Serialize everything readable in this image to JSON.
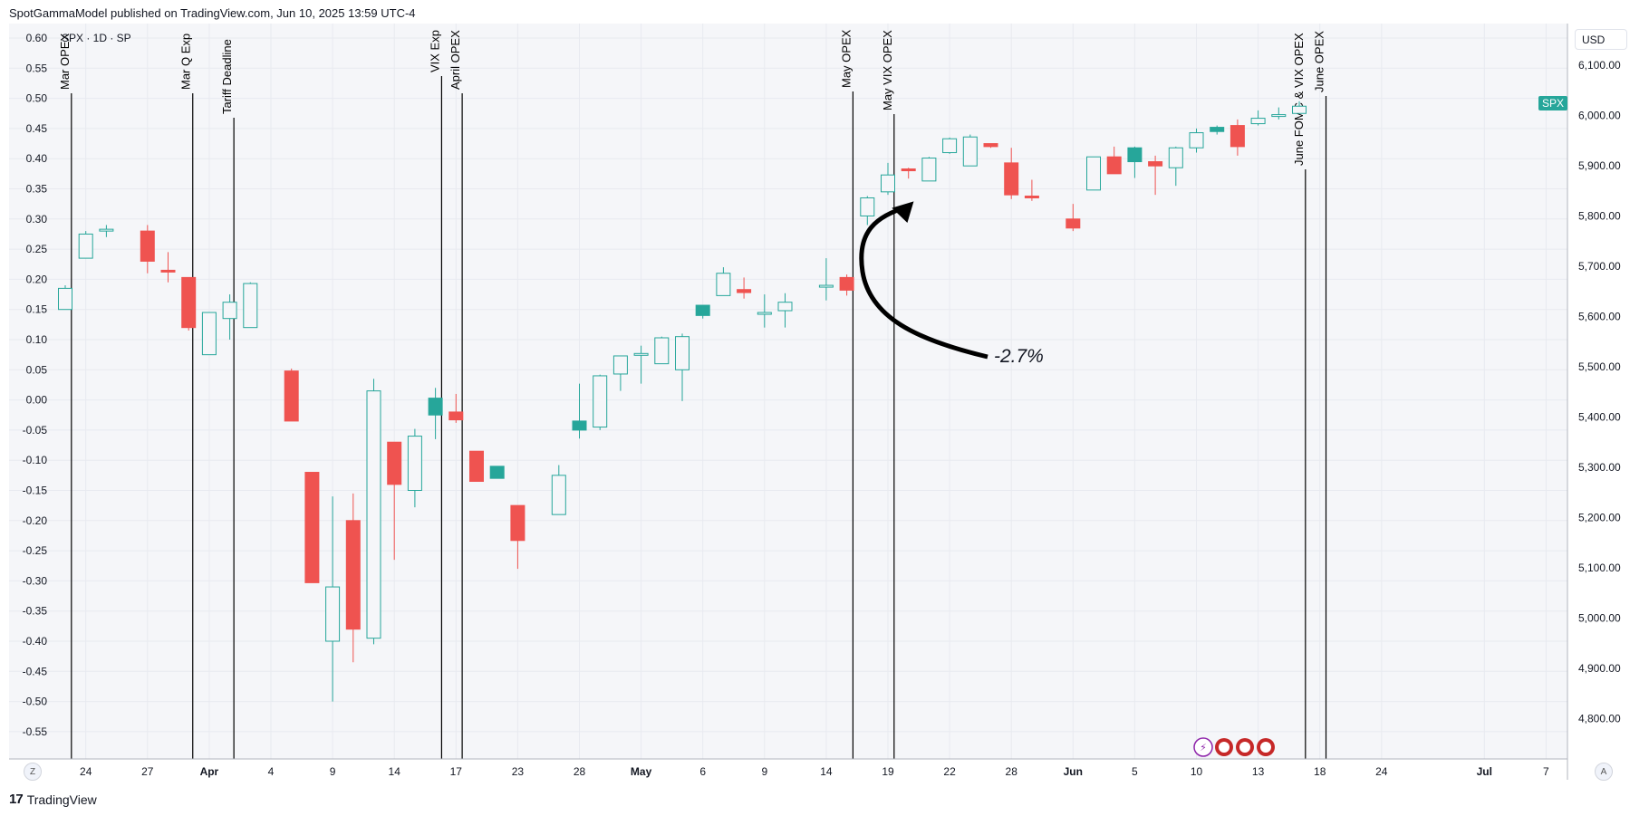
{
  "header": "SpotGammaModel published on TradingView.com, Jun 10, 2025 13:59 UTC-4",
  "symbol_info": "SPX · 1D · SP",
  "currency": "USD",
  "price_badge": "SPX",
  "annotation": "-2.7%",
  "footer": "TradingView",
  "buttons": {
    "left": "Z",
    "right": "A"
  },
  "colors": {
    "up": "#26a69a",
    "down": "#ef5350",
    "grid": "#e8eaf0",
    "text": "#131722"
  },
  "chart_data": {
    "type": "candlestick",
    "title": "",
    "left_axis": {
      "ticks": [
        "0.60",
        "0.55",
        "0.50",
        "0.45",
        "0.40",
        "0.35",
        "0.30",
        "0.25",
        "0.20",
        "0.15",
        "0.10",
        "0.05",
        "0.00",
        "-0.05",
        "-0.10",
        "-0.15",
        "-0.20",
        "-0.25",
        "-0.30",
        "-0.35",
        "-0.40",
        "-0.45",
        "-0.50",
        "-0.55"
      ],
      "range": [
        -0.59,
        0.63
      ]
    },
    "right_axis": {
      "ticks": [
        "6,100.00",
        "6,000.00",
        "5,900.00",
        "5,800.00",
        "5,700.00",
        "5,600.00",
        "5,500.00",
        "5,400.00",
        "5,300.00",
        "5,200.00",
        "5,100.00",
        "5,000.00",
        "4,900.00",
        "4,800.00"
      ],
      "range": [
        4713,
        6180
      ]
    },
    "x_axis_labels": [
      {
        "label": "24",
        "bold": false
      },
      {
        "label": "27",
        "bold": false
      },
      {
        "label": "Apr",
        "bold": true
      },
      {
        "label": "4",
        "bold": false
      },
      {
        "label": "9",
        "bold": false
      },
      {
        "label": "14",
        "bold": false
      },
      {
        "label": "17",
        "bold": false
      },
      {
        "label": "23",
        "bold": false
      },
      {
        "label": "28",
        "bold": false
      },
      {
        "label": "May",
        "bold": true
      },
      {
        "label": "6",
        "bold": false
      },
      {
        "label": "9",
        "bold": false
      },
      {
        "label": "14",
        "bold": false
      },
      {
        "label": "19",
        "bold": false
      },
      {
        "label": "22",
        "bold": false
      },
      {
        "label": "28",
        "bold": false
      },
      {
        "label": "Jun",
        "bold": true
      },
      {
        "label": "5",
        "bold": false
      },
      {
        "label": "10",
        "bold": false
      },
      {
        "label": "13",
        "bold": false
      },
      {
        "label": "18",
        "bold": false
      },
      {
        "label": "24",
        "bold": false
      },
      {
        "label": "Jul",
        "bold": true
      },
      {
        "label": "7",
        "bold": false
      }
    ],
    "events": [
      "Mar OPEX",
      "Mar Q Exp",
      "Tariff Deadline",
      "VIX Exp",
      "April OPEX",
      "May OPEX",
      "May VIX OPEX",
      "June FOMC & VIX OPEX",
      "June OPEX"
    ],
    "candles": [
      {
        "o": 0.15,
        "h": 0.19,
        "l": 0.15,
        "c": 0.185
      },
      {
        "o": 0.235,
        "h": 0.28,
        "l": 0.235,
        "c": 0.275
      },
      {
        "o": 0.28,
        "h": 0.29,
        "l": 0.27,
        "c": 0.283
      },
      {
        "o": 0.28,
        "h": 0.29,
        "l": 0.21,
        "c": 0.23
      },
      {
        "o": 0.215,
        "h": 0.245,
        "l": 0.195,
        "c": 0.213
      },
      {
        "o": 0.203,
        "h": 0.203,
        "l": 0.115,
        "c": 0.12
      },
      {
        "o": 0.075,
        "h": 0.145,
        "l": 0.075,
        "c": 0.145
      },
      {
        "o": 0.135,
        "h": 0.175,
        "l": 0.1,
        "c": 0.162
      },
      {
        "o": 0.12,
        "h": 0.195,
        "l": 0.12,
        "c": 0.193
      },
      {
        "o": 0.048,
        "h": 0.052,
        "l": -0.035,
        "c": -0.035
      },
      {
        "o": -0.12,
        "h": -0.12,
        "l": -0.303,
        "c": -0.303
      },
      {
        "o": -0.4,
        "h": -0.16,
        "l": -0.5,
        "c": -0.31
      },
      {
        "o": -0.2,
        "h": -0.155,
        "l": -0.435,
        "c": -0.38
      },
      {
        "o": -0.395,
        "h": 0.035,
        "l": -0.405,
        "c": 0.015
      },
      {
        "o": -0.07,
        "h": -0.07,
        "l": -0.265,
        "c": -0.14
      },
      {
        "o": -0.15,
        "h": -0.048,
        "l": -0.178,
        "c": -0.06
      },
      {
        "o": -0.025,
        "h": 0.02,
        "l": -0.065,
        "c": 0.003
      },
      {
        "o": -0.02,
        "h": 0.01,
        "l": -0.038,
        "c": -0.033
      },
      {
        "o": -0.085,
        "h": -0.085,
        "l": -0.135,
        "c": -0.135
      },
      {
        "o": -0.13,
        "h": -0.11,
        "l": -0.13,
        "c": -0.11
      },
      {
        "o": -0.175,
        "h": -0.175,
        "l": -0.28,
        "c": -0.233
      },
      {
        "o": -0.19,
        "h": -0.108,
        "l": -0.19,
        "c": -0.125
      },
      {
        "o": -0.05,
        "h": 0.027,
        "l": -0.064,
        "c": -0.035
      },
      {
        "o": -0.045,
        "h": 0.042,
        "l": -0.05,
        "c": 0.04
      },
      {
        "o": 0.043,
        "h": 0.072,
        "l": 0.015,
        "c": 0.073
      },
      {
        "o": 0.075,
        "h": 0.09,
        "l": 0.027,
        "c": 0.077
      },
      {
        "o": 0.06,
        "h": 0.105,
        "l": 0.06,
        "c": 0.103
      },
      {
        "o": 0.05,
        "h": 0.11,
        "l": -0.002,
        "c": 0.105
      },
      {
        "o": 0.14,
        "h": 0.155,
        "l": 0.135,
        "c": 0.157
      },
      {
        "o": 0.173,
        "h": 0.22,
        "l": 0.173,
        "c": 0.21
      },
      {
        "o": 0.183,
        "h": 0.203,
        "l": 0.168,
        "c": 0.178
      },
      {
        "o": 0.145,
        "h": 0.175,
        "l": 0.12,
        "c": 0.145
      },
      {
        "o": 0.148,
        "h": 0.177,
        "l": 0.12,
        "c": 0.162
      },
      {
        "o": 0.188,
        "h": 0.235,
        "l": 0.165,
        "c": 0.19
      },
      {
        "o": 0.203,
        "h": 0.208,
        "l": 0.173,
        "c": 0.182
      },
      {
        "o": 0.305,
        "h": 0.338,
        "l": 0.29,
        "c": 0.335
      },
      {
        "o": 0.345,
        "h": 0.393,
        "l": 0.34,
        "c": 0.373
      },
      {
        "o": 0.383,
        "h": 0.385,
        "l": 0.367,
        "c": 0.38
      },
      {
        "o": 0.363,
        "h": 0.403,
        "l": 0.363,
        "c": 0.401
      },
      {
        "o": 0.41,
        "h": 0.435,
        "l": 0.408,
        "c": 0.433
      },
      {
        "o": 0.388,
        "h": 0.44,
        "l": 0.388,
        "c": 0.436
      },
      {
        "o": 0.425,
        "h": 0.425,
        "l": 0.418,
        "c": 0.42
      },
      {
        "o": 0.393,
        "h": 0.418,
        "l": 0.333,
        "c": 0.34
      },
      {
        "o": 0.338,
        "h": 0.365,
        "l": 0.33,
        "c": 0.337
      },
      {
        "o": 0.3,
        "h": 0.325,
        "l": 0.28,
        "c": 0.285
      },
      {
        "o": 0.348,
        "h": 0.403,
        "l": 0.348,
        "c": 0.403
      },
      {
        "o": 0.403,
        "h": 0.42,
        "l": 0.375,
        "c": 0.375
      },
      {
        "o": 0.395,
        "h": 0.42,
        "l": 0.368,
        "c": 0.418
      },
      {
        "o": 0.395,
        "h": 0.405,
        "l": 0.34,
        "c": 0.388
      },
      {
        "o": 0.385,
        "h": 0.42,
        "l": 0.355,
        "c": 0.418
      },
      {
        "o": 0.418,
        "h": 0.45,
        "l": 0.41,
        "c": 0.443
      },
      {
        "o": 0.445,
        "h": 0.455,
        "l": 0.44,
        "c": 0.452
      },
      {
        "o": 0.455,
        "h": 0.465,
        "l": 0.405,
        "c": 0.42
      },
      {
        "o": 0.458,
        "h": 0.48,
        "l": 0.455,
        "c": 0.467
      },
      {
        "o": 0.472,
        "h": 0.485,
        "l": 0.465,
        "c": 0.473
      },
      {
        "o": 0.475,
        "h": 0.495,
        "l": 0.475,
        "c": 0.487
      }
    ]
  }
}
